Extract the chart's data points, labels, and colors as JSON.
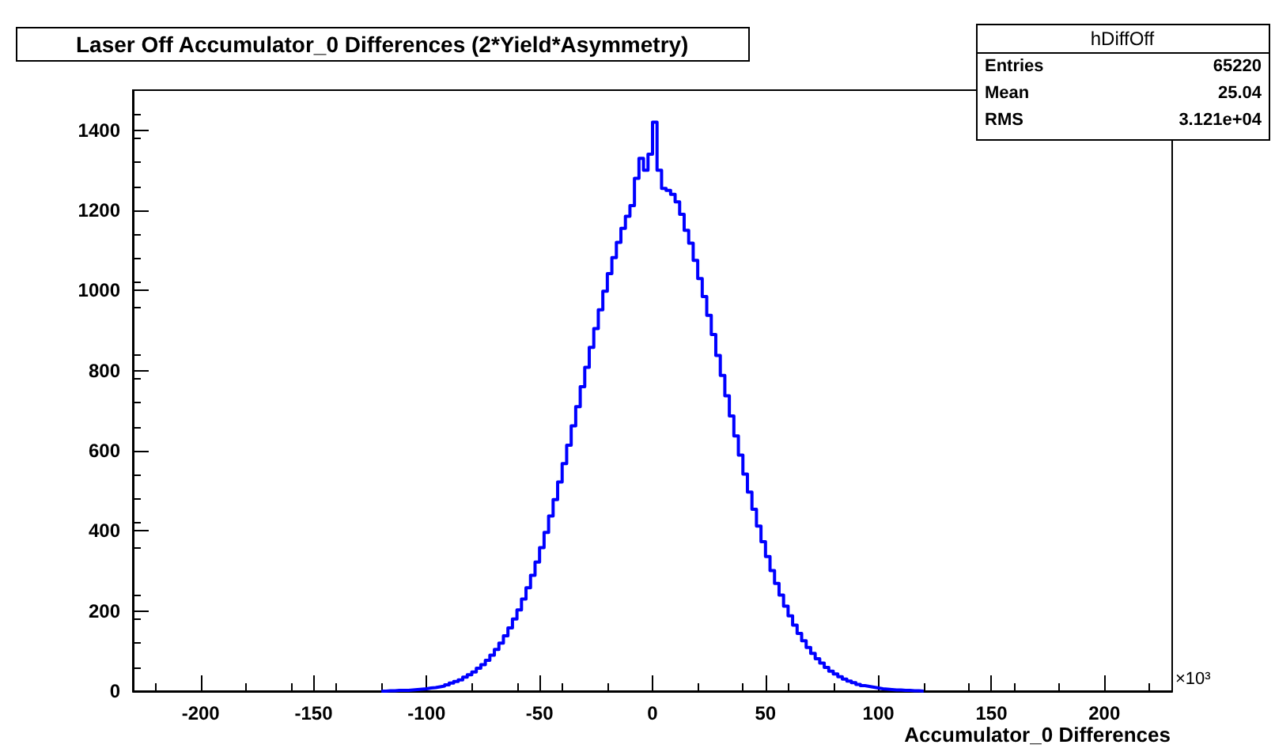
{
  "chart_data": {
    "type": "histogram",
    "title": "Laser Off Accumulator_0 Differences (2*Yield*Asymmetry)",
    "xlabel": "Accumulator_0 Differences",
    "annotations": [
      "×10³",
      "hDiffOff",
      "Entries",
      "65220",
      "Mean",
      "25.04",
      "RMS",
      "3.121e+04"
    ],
    "color": "#0000ff",
    "bins": [
      -120,
      -118,
      -116,
      -114,
      -112,
      -110,
      -108,
      -106,
      -104,
      -102,
      -100,
      -98,
      -96,
      -94,
      -92,
      -90,
      -88,
      -86,
      -84,
      -82,
      -80,
      -78,
      -76,
      -74,
      -72,
      -70,
      -68,
      -66,
      -64,
      -62,
      -60,
      -58,
      -56,
      -54,
      -52,
      -50,
      -48,
      -46,
      -44,
      -42,
      -40,
      -38,
      -36,
      -34,
      -32,
      -30,
      -28,
      -26,
      -24,
      -22,
      -20,
      -18,
      -16,
      -14,
      -12,
      -10,
      -8,
      -6,
      -4,
      -2,
      0,
      2,
      4,
      6,
      8,
      10,
      12,
      14,
      16,
      18,
      20,
      22,
      24,
      26,
      28,
      30,
      32,
      34,
      36,
      38,
      40,
      42,
      44,
      46,
      48,
      50,
      52,
      54,
      56,
      58,
      60,
      62,
      64,
      66,
      68,
      70,
      72,
      74,
      76,
      78,
      80,
      82,
      84,
      86,
      88,
      90,
      92,
      94,
      96,
      98,
      100,
      102,
      104,
      106,
      108,
      110,
      112,
      114,
      116,
      118,
      120
    ],
    "values": [
      0,
      1,
      1,
      2,
      2,
      2,
      3,
      4,
      5,
      6,
      8,
      9,
      11,
      13,
      16,
      20,
      24,
      28,
      35,
      41,
      48,
      57,
      66,
      77,
      90,
      104,
      120,
      138,
      158,
      180,
      203,
      230,
      258,
      289,
      322,
      358,
      396,
      437,
      478,
      522,
      568,
      614,
      662,
      710,
      760,
      808,
      858,
      905,
      952,
      998,
      1042,
      1082,
      1120,
      1155,
      1185,
      1212,
      1280,
      1330,
      1300,
      1340,
      1420,
      1300,
      1255,
      1250,
      1240,
      1221,
      1190,
      1150,
      1118,
      1075,
      1030,
      985,
      938,
      890,
      838,
      788,
      737,
      687,
      637,
      589,
      542,
      497,
      454,
      412,
      373,
      336,
      301,
      269,
      240,
      212,
      188,
      165,
      144,
      126,
      109,
      94,
      81,
      70,
      59,
      50,
      43,
      36,
      30,
      25,
      21,
      17,
      14,
      12,
      10,
      8,
      6,
      5,
      4,
      3,
      3,
      2,
      2,
      1,
      1,
      0
    ],
    "xlim": [
      -230,
      230
    ],
    "ylim": [
      0,
      1500
    ],
    "xticks": [
      -200,
      -150,
      -100,
      -50,
      0,
      50,
      100,
      150,
      200
    ],
    "yticks": [
      0,
      200,
      400,
      600,
      800,
      1000,
      1200,
      1400
    ],
    "grid": false
  }
}
